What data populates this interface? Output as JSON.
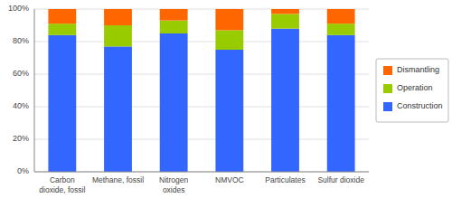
{
  "chart_data": {
    "type": "bar",
    "stacked": true,
    "categories": [
      "Carbon\ndioxide, fossil",
      "Methane, fossil",
      "Nitrogen\noxides",
      "NMVOC",
      "Particulates",
      "Sulfur dioxide"
    ],
    "series": [
      {
        "name": "Construction",
        "color": "#3366FF",
        "values": [
          84,
          77,
          85,
          75,
          88,
          84
        ]
      },
      {
        "name": "Operation",
        "color": "#99CC00",
        "values": [
          7,
          13,
          8,
          12,
          9,
          7
        ]
      },
      {
        "name": "Dismantling",
        "color": "#FF6600",
        "values": [
          9,
          10,
          7,
          13,
          3,
          9
        ]
      }
    ],
    "ylim": [
      0,
      100
    ],
    "yticks": [
      {
        "value": 0,
        "label": "0%"
      },
      {
        "value": 20,
        "label": "20%"
      },
      {
        "value": 40,
        "label": "40%"
      },
      {
        "value": 60,
        "label": "60%"
      },
      {
        "value": 80,
        "label": "80%"
      },
      {
        "value": 100,
        "label": "100%"
      }
    ],
    "grid": true,
    "legend": "right"
  }
}
